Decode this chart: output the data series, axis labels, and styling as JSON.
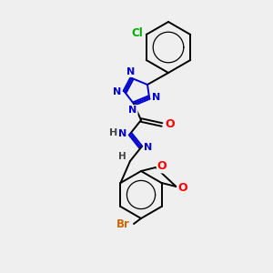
{
  "background_color": "#efefef",
  "bond_color": "#000000",
  "atom_colors": {
    "N": "#0000cc",
    "O": "#ff0000",
    "Cl": "#00aa00",
    "Br": "#cc6600",
    "H": "#444444",
    "C": "#000000"
  },
  "lw": 1.4,
  "fs": 8.5
}
